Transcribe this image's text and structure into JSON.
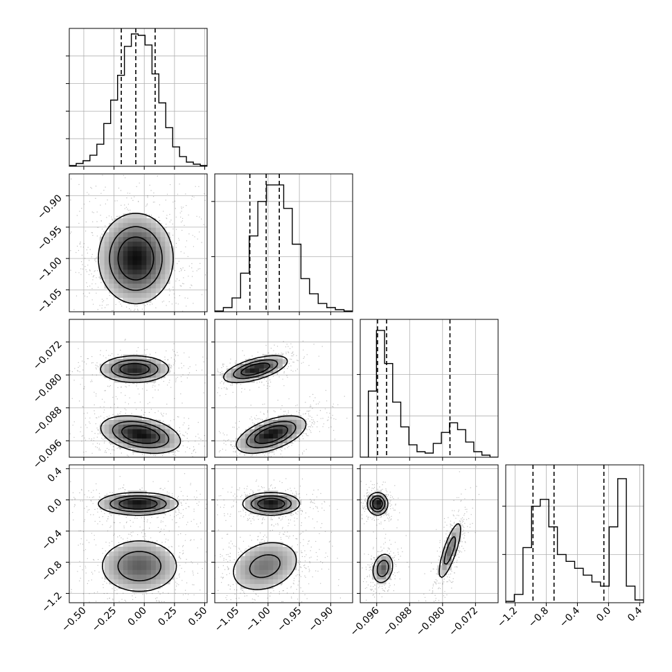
{
  "chart_data": {
    "type": "corner",
    "description_free": true,
    "colors": {
      "line": "#000000",
      "grid": "#b0b0b0",
      "points": "#000000"
    },
    "grid": true,
    "n_params": 4,
    "params": [
      {
        "range": [
          -0.62,
          0.52
        ],
        "ticks": [
          -0.5,
          -0.25,
          0.0,
          0.25,
          0.5
        ],
        "tick_labels": [
          "−0.50",
          "−0.25",
          "0.00",
          "0.25",
          "0.50"
        ],
        "quantiles": [
          -0.19,
          -0.07,
          0.09
        ],
        "hist_counts": [
          0.5,
          2,
          4,
          8,
          16,
          31,
          48,
          66,
          87,
          96,
          95,
          88,
          67,
          46,
          28,
          14,
          7,
          3,
          1.5,
          0.5
        ],
        "hist_ymax": 100,
        "hist_yticks": [
          20,
          40,
          60,
          80
        ]
      },
      {
        "range": [
          -1.085,
          -0.865
        ],
        "ticks": [
          -1.05,
          -1.0,
          -0.95,
          -0.9
        ],
        "tick_labels": [
          "−1.05",
          "−1.00",
          "−0.95",
          "−0.90"
        ],
        "quantiles": [
          -1.029,
          -1.003,
          -0.982
        ],
        "hist_counts": [
          0.5,
          3,
          10,
          28,
          55,
          80,
          92,
          92,
          75,
          49,
          24,
          13,
          6,
          3,
          1.5,
          0.5
        ],
        "hist_ymax": 100,
        "hist_yticks": [
          40,
          80
        ]
      },
      {
        "range": [
          -0.1,
          -0.0665
        ],
        "ticks": [
          -0.096,
          -0.088,
          -0.08,
          -0.072
        ],
        "tick_labels": [
          "−0.096",
          "−0.088",
          "−0.080",
          "−0.072"
        ],
        "quantiles": [
          -0.0958,
          -0.0936,
          -0.0782
        ],
        "hist_counts": [
          0,
          48,
          92,
          68,
          40,
          22,
          9,
          4,
          3,
          10,
          18,
          25,
          20,
          11,
          4,
          1.5,
          0
        ],
        "hist_ymax": 100,
        "hist_yticks": [
          30,
          60
        ]
      },
      {
        "range": [
          -1.32,
          0.45
        ],
        "ticks": [
          -1.2,
          -0.8,
          -0.4,
          0.0,
          0.4
        ],
        "tick_labels": [
          "−1.2",
          "−0.8",
          "−0.4",
          "0.0",
          "0.4"
        ],
        "quantiles": [
          -0.97,
          -0.7,
          -0.06
        ],
        "hist_counts": [
          1,
          6,
          40,
          70,
          75,
          55,
          35,
          30,
          25,
          20,
          15,
          12,
          55,
          90,
          12,
          2
        ],
        "hist_ymax": 100,
        "hist_yticks": [
          35,
          70
        ]
      }
    ],
    "clusters_2d": {
      "1-0": [
        {
          "mx": -0.07,
          "my": -1.0,
          "sx": 0.15,
          "sy": 0.035,
          "w": 1.0,
          "rho": 0.0
        }
      ],
      "2-0": [
        {
          "mx": -0.08,
          "my": -0.0786,
          "sx": 0.14,
          "sy": 0.0016,
          "w": 0.38,
          "rho": 0.0
        },
        {
          "mx": -0.03,
          "my": -0.0945,
          "sx": 0.16,
          "sy": 0.0022,
          "w": 0.62,
          "rho": -0.35
        }
      ],
      "2-1": [
        {
          "mx": -1.02,
          "my": -0.0786,
          "sx": 0.025,
          "sy": 0.0016,
          "w": 0.38,
          "rho": 0.6
        },
        {
          "mx": -0.995,
          "my": -0.0945,
          "sx": 0.027,
          "sy": 0.0022,
          "w": 0.62,
          "rho": 0.55
        }
      ],
      "3-0": [
        {
          "mx": -0.05,
          "my": -0.05,
          "sx": 0.16,
          "sy": 0.07,
          "w": 0.38,
          "rho": 0.0
        },
        {
          "mx": -0.04,
          "my": -0.85,
          "sx": 0.17,
          "sy": 0.18,
          "w": 0.62,
          "rho": 0.0
        }
      ],
      "3-1": [
        {
          "mx": -0.995,
          "my": -0.05,
          "sx": 0.022,
          "sy": 0.07,
          "w": 0.38,
          "rho": 0.0
        },
        {
          "mx": -1.005,
          "my": -0.85,
          "sx": 0.03,
          "sy": 0.18,
          "w": 0.62,
          "rho": 0.25
        }
      ],
      "3-2": [
        {
          "mx": -0.0958,
          "my": -0.05,
          "sx": 0.0012,
          "sy": 0.07,
          "w": 0.33,
          "rho": 0.0
        },
        {
          "mx": -0.0945,
          "my": -0.88,
          "sx": 0.0013,
          "sy": 0.1,
          "w": 0.3,
          "rho": 0.2
        },
        {
          "mx": -0.0782,
          "my": -0.65,
          "sx": 0.0015,
          "sy": 0.2,
          "w": 0.37,
          "rho": 0.8
        }
      ]
    }
  }
}
